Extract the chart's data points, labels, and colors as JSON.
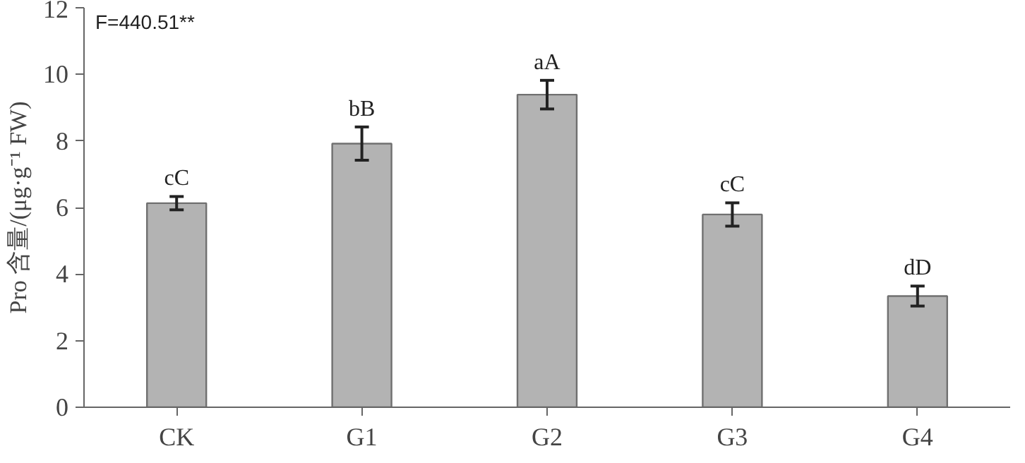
{
  "chart_data": {
    "type": "bar",
    "ylabel": "Pro 含量/(μg·g⁻¹ FW)",
    "annotations": [
      "F=440.51**"
    ],
    "categories": [
      "CK",
      "G1",
      "G2",
      "G3",
      "G4"
    ],
    "values": [
      6.13,
      7.92,
      9.39,
      5.79,
      3.34
    ],
    "errors": [
      0.2,
      0.5,
      0.43,
      0.35,
      0.3
    ],
    "value_labels": [
      "cC",
      "bB",
      "aA",
      "cC",
      "dD"
    ],
    "color": "#b3b3b3",
    "ylim": [
      0,
      12
    ],
    "yticks": [
      0,
      2,
      4,
      6,
      8,
      10,
      12
    ],
    "grid": false
  }
}
